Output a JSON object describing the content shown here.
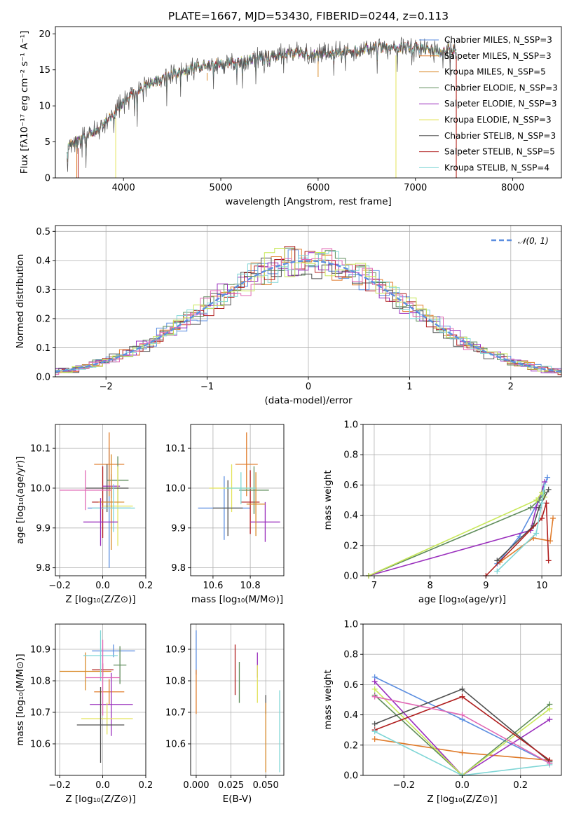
{
  "colors": {
    "series": [
      "#5b8ee0",
      "#e07b2a",
      "#d98a28",
      "#5e8c5a",
      "#9a2fbd",
      "#e3e35a",
      "#505050",
      "#b01e1e",
      "#7fd6d6"
    ],
    "extra": [
      "#e067b4",
      "#c8e85a"
    ],
    "gauss": "#5b8ee0"
  },
  "chart_data": [
    {
      "id": "spectrum",
      "type": "line",
      "title": "PLATE=1667, MJD=53430, FIBERID=0244, z=0.113",
      "xlabel": "wavelength [Angstrom, rest frame]",
      "ylabel": "Flux [fλ10⁻¹⁷ erg cm⁻² s⁻¹ A⁻¹]",
      "xlim": [
        3300,
        8500
      ],
      "ylim": [
        0,
        21
      ],
      "xticks": [
        "4000",
        "5000",
        "6000",
        "7000",
        "8000"
      ],
      "yticks": [
        "0",
        "5",
        "10",
        "15",
        "20"
      ],
      "legend": [
        "Chabrier MILES, N_SSP=3",
        "Salpeter MILES, N_SSP=3",
        "Kroupa MILES, N_SSP=5",
        "Chabrier ELODIE, N_SSP=3",
        "Salpeter ELODIE, N_SSP=3",
        "Kroupa ELODIE, N_SSP=3",
        "Chabrier STELIB, N_SSP=3",
        "Salpeter STELIB, N_SSP=5",
        "Kroupa STELIB, N_SSP=4"
      ],
      "legend_position": "right",
      "continuum": {
        "x": [
          3420,
          3600,
          3800,
          4000,
          4200,
          4400,
          4600,
          4800,
          5000,
          5200,
          5400,
          5600,
          5800,
          6000,
          6200,
          6400,
          6600,
          6800,
          7000,
          7200,
          7400
        ],
        "y": [
          4.5,
          5.5,
          7.5,
          10.5,
          12.5,
          13.8,
          14.8,
          15.5,
          15.8,
          16.0,
          16.8,
          17.0,
          17.3,
          17.2,
          17.5,
          17.7,
          18.2,
          18.0,
          18.3,
          17.6,
          17.9
        ]
      }
    },
    {
      "id": "residuals",
      "type": "histogram",
      "xlabel": "(data-model)/error",
      "ylabel": "Normed distribution",
      "xlim": [
        -2.5,
        2.5
      ],
      "ylim": [
        0,
        0.52
      ],
      "xticks": [
        "−2",
        "−1",
        "0",
        "1",
        "2"
      ],
      "yticks": [
        "0.0",
        "0.1",
        "0.2",
        "0.3",
        "0.4",
        "0.5"
      ],
      "legend": [
        "𝒩(0, 1)"
      ],
      "legend_position": "top-right",
      "bin_width": 0.1,
      "reference": "N(0,1)"
    },
    {
      "id": "z-age",
      "type": "errorbar",
      "xlabel": "Z [log₁₀(Z/Z⊙)]",
      "ylabel": "age  [log₁₀(age/yr)]",
      "xlim": [
        -0.22,
        0.2
      ],
      "ylim": [
        9.78,
        10.16
      ],
      "xticks": [
        "−0.2",
        "0.0",
        "0.2"
      ],
      "yticks": [
        "9.8",
        "9.9",
        "10.0",
        "10.1"
      ],
      "points": [
        {
          "x": 0.03,
          "xerr": 0.1,
          "y": 9.95,
          "yerr": 0.15
        },
        {
          "x": 0.03,
          "xerr": 0.07,
          "y": 10.06,
          "yerr": 0.08
        },
        {
          "x": 0.0,
          "xerr": 0.05,
          "y": 9.965,
          "yerr": 0.09
        },
        {
          "x": 0.07,
          "xerr": 0.05,
          "y": 10.02,
          "yerr": 0.06
        },
        {
          "x": 0.04,
          "xerr": 0.04,
          "y": 10.005,
          "yerr": 0.03
        },
        {
          "x": 0.07,
          "xerr": 0.07,
          "y": 9.955,
          "yerr": 0.1
        },
        {
          "x": 0.02,
          "xerr": 0.1,
          "y": 10.0,
          "yerr": 0.06
        },
        {
          "x": 0.04,
          "xerr": 0.06,
          "y": 9.965,
          "yerr": 0.12
        },
        {
          "x": 0.05,
          "xerr": 0.1,
          "y": 9.95,
          "yerr": 0.06
        },
        {
          "x": -0.08,
          "xerr": 0.12,
          "y": 9.995,
          "yerr": 0.05
        },
        {
          "x": -0.01,
          "xerr": 0.08,
          "y": 9.915,
          "yerr": 0.06
        }
      ]
    },
    {
      "id": "mass-age",
      "type": "errorbar",
      "xlabel": "mass [log₁₀(M/M⊙)]",
      "ylabel": "",
      "xlim": [
        10.48,
        10.98
      ],
      "ylim": [
        9.78,
        10.16
      ],
      "xticks": [
        "10.6",
        "10.8"
      ],
      "yticks": [
        "9.8",
        "9.9",
        "10.0",
        "10.1"
      ],
      "points": [
        {
          "x": 10.66,
          "xerr": 0.14,
          "y": 9.95,
          "yerr": 0.08
        },
        {
          "x": 10.78,
          "xerr": 0.06,
          "y": 10.06,
          "yerr": 0.08
        },
        {
          "x": 10.8,
          "xerr": 0.05,
          "y": 9.965,
          "yerr": 0.08
        },
        {
          "x": 10.82,
          "xerr": 0.08,
          "y": 9.995,
          "yerr": 0.06
        },
        {
          "x": 10.88,
          "xerr": 0.08,
          "y": 9.915,
          "yerr": 0.05
        },
        {
          "x": 10.7,
          "xerr": 0.12,
          "y": 10.0,
          "yerr": 0.06
        },
        {
          "x": 10.68,
          "xerr": 0.08,
          "y": 9.95,
          "yerr": 0.07
        },
        {
          "x": 10.83,
          "xerr": 0.05,
          "y": 9.96,
          "yerr": 0.08
        },
        {
          "x": 10.75,
          "xerr": 0.08,
          "y": 10.0,
          "yerr": 0.04
        }
      ]
    },
    {
      "id": "age-weight",
      "type": "line",
      "xlabel": "age  [log₁₀(age/yr)]",
      "ylabel": "mass weight",
      "xlim": [
        6.8,
        10.35
      ],
      "ylim": [
        0,
        1
      ],
      "xticks": [
        "7",
        "8",
        "9",
        "10"
      ],
      "yticks": [
        "0.0",
        "0.2",
        "0.4",
        "0.6",
        "0.8",
        "1.0"
      ],
      "series": [
        {
          "x": [
            9.2,
            9.6,
            9.95,
            10.1
          ],
          "y": [
            0.08,
            0.26,
            0.5,
            0.65
          ]
        },
        {
          "x": [
            9.25,
            9.85,
            10.15,
            10.2
          ],
          "y": [
            0.09,
            0.25,
            0.23,
            0.38
          ]
        },
        {
          "x": [
            6.9,
            9.8,
            9.9,
            10.05
          ],
          "y": [
            0.0,
            0.3,
            0.45,
            0.62
          ]
        },
        {
          "x": [
            6.9,
            9.8,
            9.95,
            10.05
          ],
          "y": [
            0.0,
            0.45,
            0.5,
            0.55
          ]
        },
        {
          "x": [
            6.9,
            9.9,
            10.0,
            10.05
          ],
          "y": [
            0.0,
            0.5,
            0.55,
            0.52
          ]
        },
        {
          "x": [
            9.2,
            9.85,
            9.95,
            10.12
          ],
          "y": [
            0.1,
            0.33,
            0.45,
            0.57
          ]
        },
        {
          "x": [
            9.0,
            10.0,
            10.08,
            10.12
          ],
          "y": [
            0.0,
            0.38,
            0.48,
            0.1
          ]
        },
        {
          "x": [
            9.2,
            9.9,
            10.0,
            10.05
          ],
          "y": [
            0.03,
            0.28,
            0.48,
            0.6
          ]
        }
      ]
    },
    {
      "id": "z-mass",
      "type": "errorbar",
      "xlabel": "Z [log₁₀(Z/Z⊙)]",
      "ylabel": "mass [log₁₀(M/M⊙)]",
      "xlim": [
        -0.22,
        0.2
      ],
      "ylim": [
        10.5,
        10.98
      ],
      "xticks": [
        "−0.2",
        "0.0",
        "0.2"
      ],
      "yticks": [
        "10.6",
        "10.7",
        "10.8",
        "10.9"
      ],
      "points": [
        {
          "x": 0.05,
          "xerr": 0.1,
          "y": 10.895,
          "yerr": 0.02
        },
        {
          "x": 0.03,
          "xerr": 0.07,
          "y": 10.765,
          "yerr": 0.04
        },
        {
          "x": 0.0,
          "xerr": 0.05,
          "y": 10.835,
          "yerr": 0.02
        },
        {
          "x": 0.08,
          "xerr": 0.03,
          "y": 10.85,
          "yerr": 0.06
        },
        {
          "x": 0.04,
          "xerr": 0.1,
          "y": 10.725,
          "yerr": 0.1
        },
        {
          "x": 0.02,
          "xerr": 0.12,
          "y": 10.68,
          "yerr": 0.05
        },
        {
          "x": -0.01,
          "xerr": 0.11,
          "y": 10.66,
          "yerr": 0.12
        },
        {
          "x": -0.08,
          "xerr": 0.12,
          "y": 10.83,
          "yerr": 0.06
        },
        {
          "x": -0.01,
          "xerr": 0.08,
          "y": 10.88,
          "yerr": 0.08
        },
        {
          "x": 0.0,
          "xerr": 0.08,
          "y": 10.81,
          "yerr": 0.12
        }
      ]
    },
    {
      "id": "ebv-mass",
      "type": "errorbar",
      "xlabel": "E(B-V)",
      "ylabel": "",
      "xlim": [
        -0.004,
        0.063
      ],
      "ylim": [
        10.5,
        10.98
      ],
      "xticks": [
        "0.000",
        "0.025",
        "0.050"
      ],
      "yticks": [
        "10.6",
        "10.7",
        "10.8",
        "10.9"
      ],
      "points": [
        {
          "x": 0.0,
          "xerr": 0,
          "y": 10.89,
          "yerr": 0.07
        },
        {
          "x": 0.0,
          "xerr": 0,
          "y": 10.765,
          "yerr": 0.07
        },
        {
          "x": 0.028,
          "xerr": 0,
          "y": 10.835,
          "yerr": 0.08
        },
        {
          "x": 0.031,
          "xerr": 0,
          "y": 10.795,
          "yerr": 0.065
        },
        {
          "x": 0.044,
          "xerr": 0,
          "y": 10.85,
          "yerr": 0.04
        },
        {
          "x": 0.044,
          "xerr": 0,
          "y": 10.79,
          "yerr": 0.06
        },
        {
          "x": 0.05,
          "xerr": 0,
          "y": 10.725,
          "yerr": 0.03
        },
        {
          "x": 0.05,
          "xerr": 0,
          "y": 10.62,
          "yerr": 0.11
        },
        {
          "x": 0.06,
          "xerr": 0,
          "y": 10.64,
          "yerr": 0.13
        }
      ]
    },
    {
      "id": "z-weight",
      "type": "line",
      "xlabel": "Z [log₁₀(Z/Z⊙)]",
      "ylabel": "mass weight",
      "xlim": [
        -0.34,
        0.34
      ],
      "ylim": [
        0,
        1
      ],
      "xticks": [
        "−0.2",
        "0.0",
        "0.2"
      ],
      "yticks": [
        "0.0",
        "0.2",
        "0.4",
        "0.6",
        "0.8",
        "1.0"
      ],
      "series": [
        {
          "x": [
            -0.3,
            0.0,
            0.3
          ],
          "y": [
            0.65,
            0.37,
            0.08
          ]
        },
        {
          "x": [
            -0.3,
            0.0,
            0.3
          ],
          "y": [
            0.24,
            0.15,
            0.1
          ]
        },
        {
          "x": [
            -0.3,
            0.0,
            0.3
          ],
          "y": [
            0.62,
            0.0,
            0.37
          ]
        },
        {
          "x": [
            -0.3,
            0.0,
            0.3
          ],
          "y": [
            0.53,
            0.0,
            0.47
          ]
        },
        {
          "x": [
            -0.3,
            0.0,
            0.3
          ],
          "y": [
            0.57,
            0.0,
            0.44
          ]
        },
        {
          "x": [
            -0.3,
            0.0,
            0.3
          ],
          "y": [
            0.34,
            0.57,
            0.09
          ]
        },
        {
          "x": [
            -0.3,
            0.0,
            0.3
          ],
          "y": [
            0.3,
            0.52,
            0.1
          ]
        },
        {
          "x": [
            -0.3,
            0.0,
            0.3
          ],
          "y": [
            0.29,
            0.0,
            0.07
          ]
        },
        {
          "x": [
            -0.3,
            0.0,
            0.3
          ],
          "y": [
            0.52,
            0.4,
            0.08
          ]
        }
      ]
    }
  ]
}
